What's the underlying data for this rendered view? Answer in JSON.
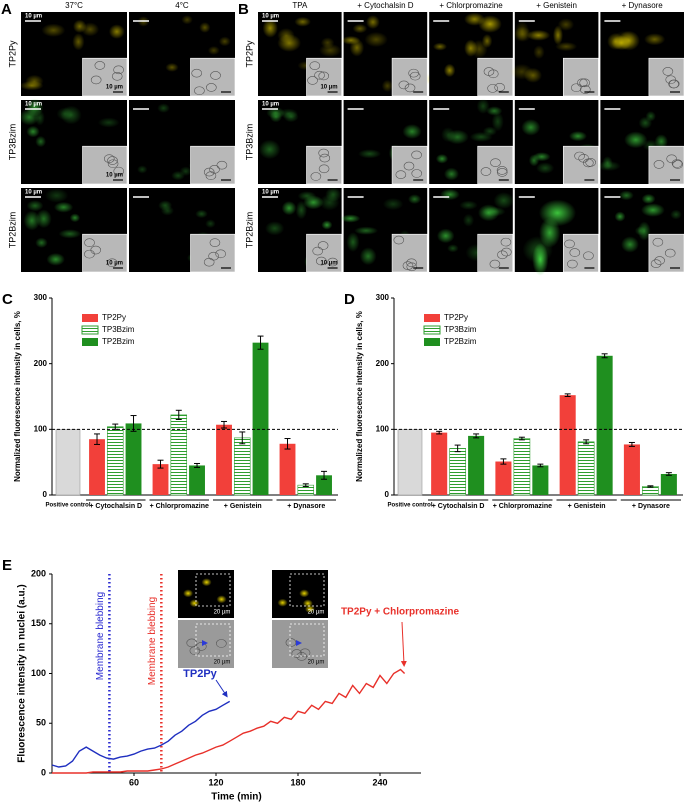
{
  "images": {
    "A": {
      "label": "A",
      "columns": [
        "37°C",
        "4°C"
      ],
      "rows": [
        "TP2Py",
        "TP3Bzim",
        "TP2Bzim"
      ],
      "panels": [
        [
          {
            "scale": "10 µm",
            "inset_scale": "10 µm"
          },
          {
            "scale": null,
            "inset_scale": null
          }
        ],
        [
          {
            "scale": "10 µm",
            "inset_scale": "10 µm"
          },
          {
            "scale": null,
            "inset_scale": null
          }
        ],
        [
          {
            "scale": "10 µm",
            "inset_scale": "10 µm"
          },
          {
            "scale": null,
            "inset_scale": null
          }
        ]
      ]
    },
    "B": {
      "label": "B",
      "columns": [
        "TPA",
        "+ Cytochalsin D",
        "+ Chlorpromazine",
        "+ Genistein",
        "+ Dynasore"
      ],
      "rows": [
        "TP2Py",
        "TP3Bzim",
        "TP2Bzim"
      ],
      "panels": [
        [
          {
            "scale": "10 µm",
            "inset_scale": "10 µm"
          },
          {
            "scale": null,
            "inset_scale": null
          },
          {
            "scale": null,
            "inset_scale": null
          },
          {
            "scale": null,
            "inset_scale": null
          },
          {
            "scale": null,
            "inset_scale": null
          }
        ],
        [
          {
            "scale": "10 µm",
            "inset_scale": null
          },
          {
            "scale": null,
            "inset_scale": null
          },
          {
            "scale": null,
            "inset_scale": null
          },
          {
            "scale": null,
            "inset_scale": null
          },
          {
            "scale": null,
            "inset_scale": null
          }
        ],
        [
          {
            "scale": "10 µm",
            "inset_scale": "10 µm"
          },
          {
            "scale": null,
            "inset_scale": null
          },
          {
            "scale": null,
            "inset_scale": null
          },
          {
            "scale": null,
            "inset_scale": null
          },
          {
            "scale": null,
            "inset_scale": null
          }
        ]
      ]
    }
  },
  "chart_data": [
    {
      "type": "bar",
      "label": "C",
      "y_label": "Normalized fluorescence intensity in cells, %",
      "control_label": "Positive control",
      "control": {
        "value": 100,
        "color": "#d9d9d9"
      },
      "categories": [
        "+ Cytochalsin D",
        "+ Chlorpromazine",
        "+ Genistein",
        "+ Dynasore"
      ],
      "series": [
        {
          "name": "TP2Py",
          "color": "#f2403a",
          "values": [
            85,
            47,
            107,
            78
          ],
          "errors": [
            8,
            6,
            5,
            8
          ]
        },
        {
          "name": "TP3Bzim",
          "color": "#2f9e2f",
          "pattern": "horizontal-lines",
          "values": [
            104,
            122,
            87,
            15
          ],
          "errors": [
            4,
            7,
            9,
            2
          ]
        },
        {
          "name": "TP2Bzim",
          "color": "#1f8f1f",
          "values": [
            109,
            45,
            232,
            30
          ],
          "errors": [
            12,
            3,
            10,
            6
          ]
        }
      ],
      "reference_line": 100,
      "ylim": [
        0,
        300
      ],
      "yticks": [
        0,
        100,
        200,
        300
      ]
    },
    {
      "type": "bar",
      "label": "D",
      "y_label": "Normalized fluorescence intensity in cells, %",
      "control_label": "Positive control",
      "control": {
        "value": 100,
        "color": "#d9d9d9"
      },
      "categories": [
        "+ Cytochalsin D",
        "+ Chlorpromazine",
        "+ Genistein",
        "+ Dynasore"
      ],
      "series": [
        {
          "name": "TP2Py",
          "color": "#f2403a",
          "values": [
            95,
            51,
            152,
            77
          ],
          "errors": [
            2,
            4,
            2,
            3
          ]
        },
        {
          "name": "TP3Bzim",
          "color": "#2f9e2f",
          "pattern": "horizontal-lines",
          "values": [
            71,
            86,
            81,
            13
          ],
          "errors": [
            5,
            2,
            3,
            1
          ]
        },
        {
          "name": "TP2Bzim",
          "color": "#1f8f1f",
          "values": [
            90,
            45,
            212,
            32
          ],
          "errors": [
            3,
            2,
            3,
            2
          ]
        }
      ],
      "reference_line": 100,
      "ylim": [
        0,
        300
      ],
      "yticks": [
        0,
        100,
        200,
        300
      ]
    },
    {
      "type": "line",
      "label": "E",
      "x_label": "Time (min)",
      "y_label": "Fluorescence intensity in nuclei (a.u.)",
      "xlim": [
        0,
        270
      ],
      "xticks": [
        60,
        120,
        180,
        240
      ],
      "ylim": [
        0,
        200
      ],
      "yticks": [
        0,
        50,
        100,
        150,
        200
      ],
      "markers": [
        {
          "x": 42,
          "label": "Membrane blebbing",
          "color": "#2b2bd0"
        },
        {
          "x": 80,
          "label": "Membrane blebbing",
          "color": "#e8302a"
        }
      ],
      "inset_scales": [
        "20 µm",
        "20 µm",
        "20 µm",
        "20 µm"
      ],
      "series": [
        {
          "name": "TP2Py",
          "color": "#1f2fc0",
          "x": [
            0,
            5,
            10,
            15,
            20,
            25,
            30,
            35,
            40,
            45,
            50,
            55,
            60,
            65,
            70,
            75,
            80,
            85,
            90,
            95,
            100,
            105,
            110,
            115,
            120,
            125,
            130
          ],
          "values": [
            8,
            6,
            7,
            12,
            22,
            26,
            22,
            18,
            15,
            14,
            16,
            17,
            19,
            22,
            24,
            25,
            28,
            32,
            38,
            42,
            48,
            52,
            58,
            62,
            64,
            68,
            72
          ]
        },
        {
          "name": "TP2Py + Chlorpromazine",
          "color": "#e8302a",
          "x": [
            0,
            5,
            10,
            15,
            20,
            25,
            30,
            35,
            40,
            45,
            50,
            55,
            60,
            65,
            70,
            75,
            80,
            85,
            90,
            95,
            100,
            105,
            110,
            115,
            120,
            125,
            130,
            135,
            140,
            145,
            150,
            155,
            160,
            165,
            170,
            175,
            180,
            185,
            190,
            195,
            200,
            205,
            210,
            215,
            220,
            225,
            230,
            235,
            240,
            245,
            250,
            255,
            258
          ],
          "values": [
            0,
            0,
            0,
            0,
            0,
            0,
            1,
            1,
            1,
            1,
            1,
            2,
            2,
            2,
            2,
            3,
            4,
            6,
            9,
            12,
            15,
            18,
            20,
            23,
            26,
            28,
            32,
            36,
            40,
            42,
            45,
            47,
            52,
            50,
            56,
            54,
            62,
            60,
            68,
            64,
            72,
            70,
            80,
            76,
            88,
            80,
            90,
            86,
            98,
            90,
            100,
            104,
            100
          ]
        }
      ]
    }
  ]
}
